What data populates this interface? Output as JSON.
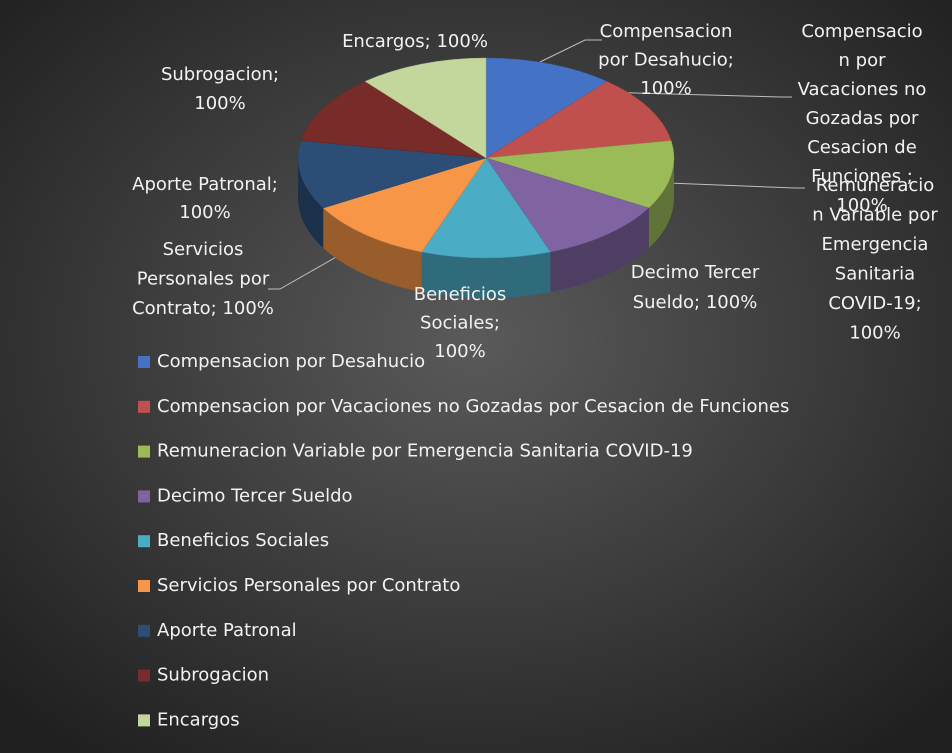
{
  "chart_data": {
    "type": "pie",
    "categories": [
      "Compensacion por Desahucio",
      "Compensacion por Vacaciones no Gozadas por Cesacion de Funciones",
      "Remuneracion Variable por Emergencia Sanitaria COVID-19",
      "Decimo Tercer Sueldo",
      "Beneficios Sociales",
      "Servicios Personales por Contrato",
      "Aporte Patronal",
      "Subrogacion",
      "Encargos"
    ],
    "values": [
      100,
      100,
      100,
      100,
      100,
      100,
      100,
      100,
      100
    ],
    "colors": [
      "#4472c4",
      "#c0504d",
      "#9bbb59",
      "#8064a2",
      "#4bacc6",
      "#f79646",
      "#2c4d75",
      "#772c2a",
      "#c3d69b"
    ],
    "data_labels": [
      [
        "Compensacion",
        "por Desahucio;",
        "100%"
      ],
      [
        "Compensacio",
        "n por",
        "Vacaciones no",
        "Gozadas por",
        "Cesacion de",
        "Funciones ;",
        "100%"
      ],
      [
        "Remuneracio",
        "n Variable por",
        "Emergencia",
        "Sanitaria",
        "COVID-19;",
        "100%"
      ],
      [
        "Decimo Tercer",
        "Sueldo; 100%"
      ],
      [
        "Beneficios",
        "Sociales;",
        "100%"
      ],
      [
        "Servicios",
        "Personales por",
        "Contrato; 100%"
      ],
      [
        "Aporte Patronal;",
        "100%"
      ],
      [
        "Subrogacion;",
        "100%"
      ],
      [
        "Encargos; 100%"
      ]
    ],
    "legend": "bottom"
  }
}
